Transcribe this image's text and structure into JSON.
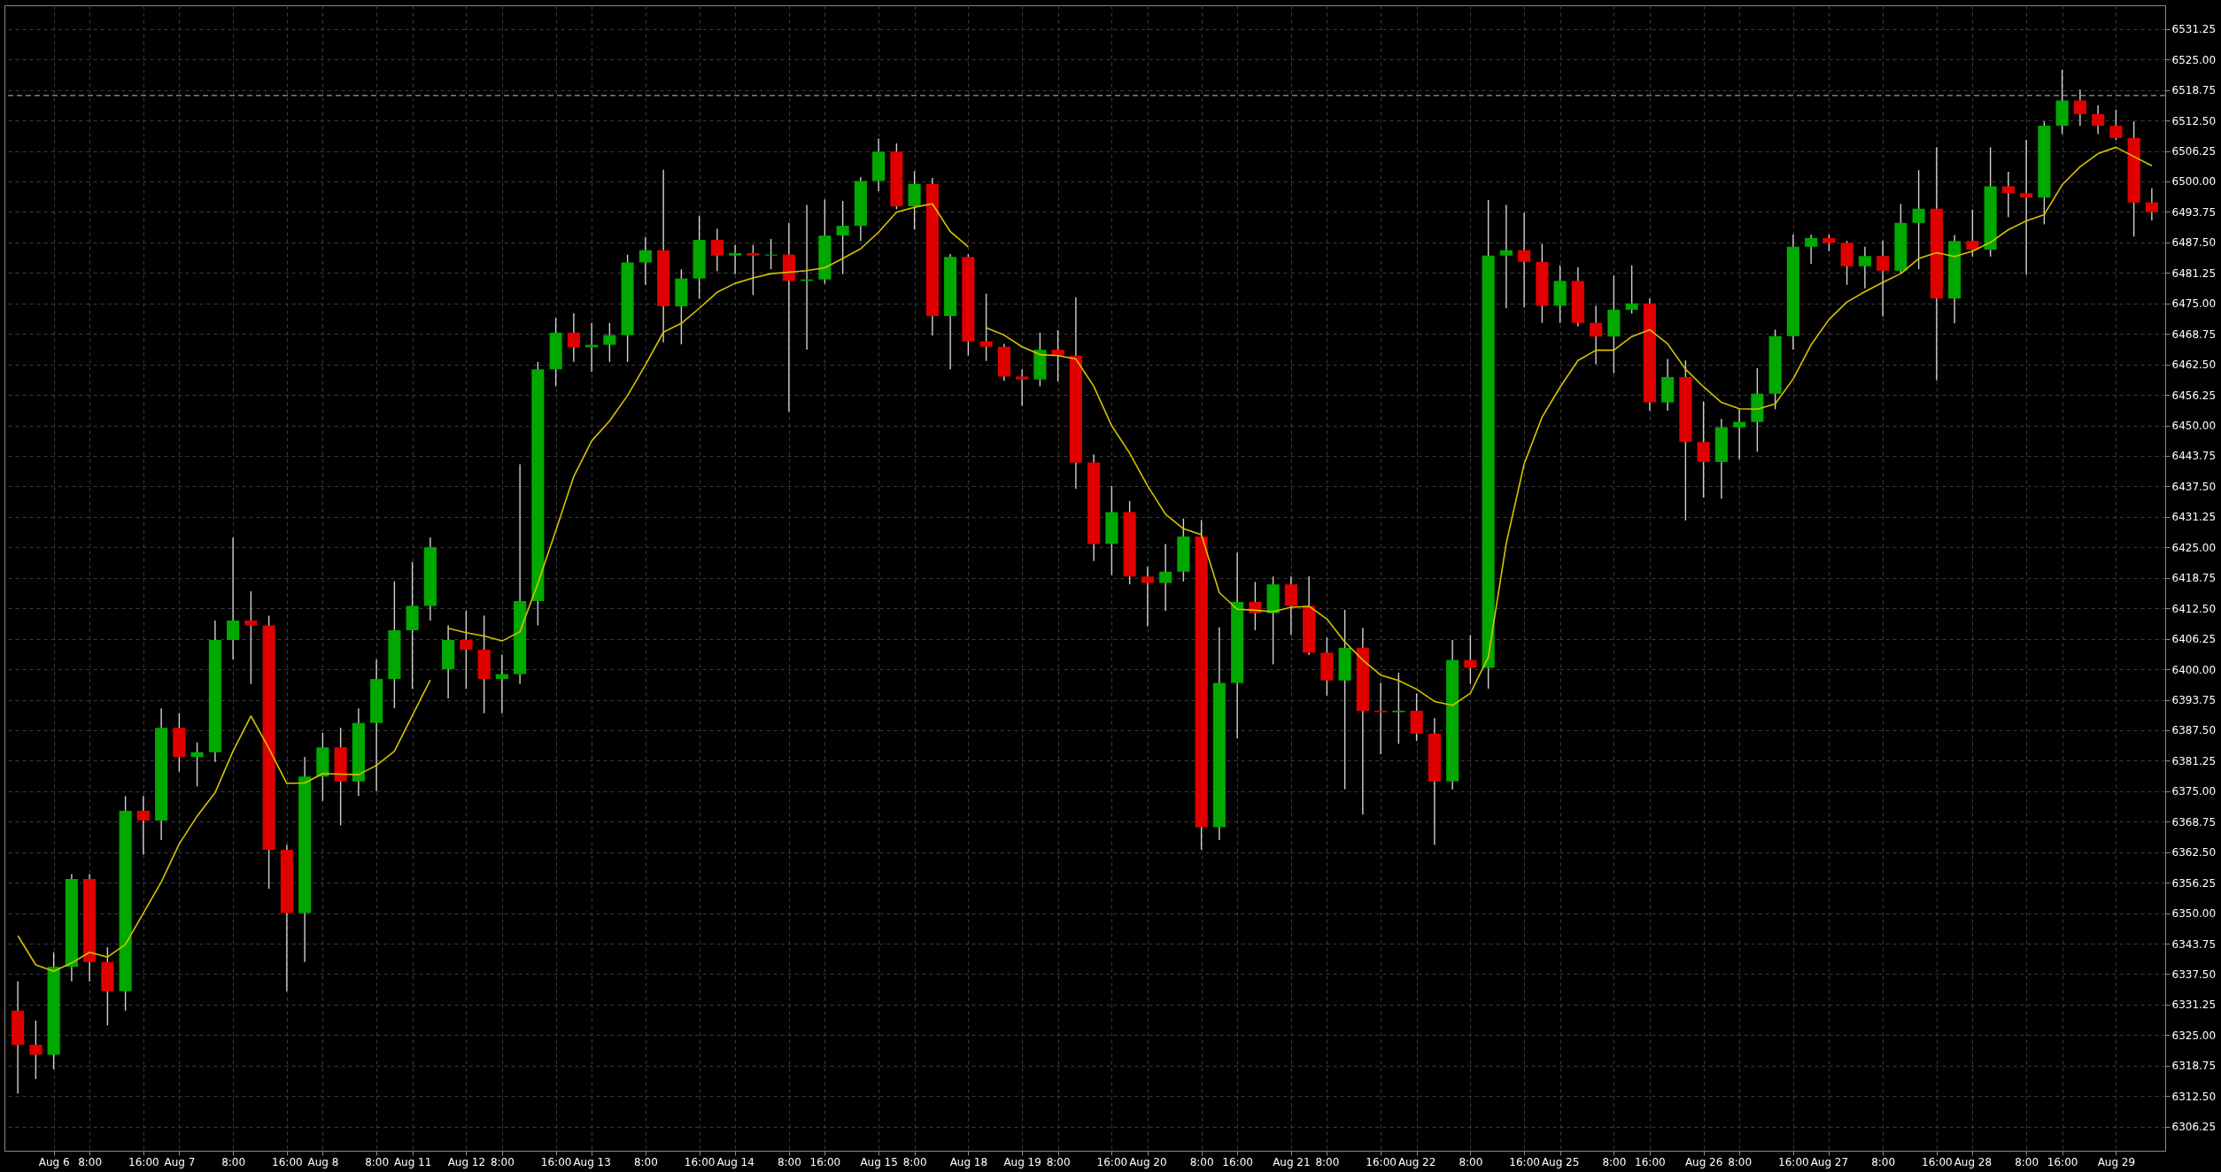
{
  "chart_data": {
    "type": "candlestick",
    "categories": [
      null,
      null,
      "Aug 6",
      null,
      "8:00",
      null,
      null,
      "16:00",
      null,
      "Aug 7",
      null,
      null,
      "8:00",
      null,
      null,
      "16:00",
      null,
      "Aug 8",
      null,
      null,
      "8:00",
      null,
      "Aug 11",
      null,
      null,
      "Aug 12",
      null,
      "8:00",
      null,
      null,
      "16:00",
      null,
      "Aug 13",
      null,
      null,
      "8:00",
      null,
      null,
      "16:00",
      null,
      "Aug 14",
      null,
      null,
      "8:00",
      null,
      "16:00",
      null,
      null,
      "Aug 15",
      null,
      "8:00",
      null,
      null,
      "Aug 18",
      null,
      null,
      "Aug 19",
      null,
      "8:00",
      null,
      null,
      "16:00",
      null,
      "Aug 20",
      null,
      null,
      "8:00",
      null,
      "16:00",
      null,
      null,
      "Aug 21",
      null,
      "8:00",
      null,
      null,
      "16:00",
      null,
      "Aug 22",
      null,
      null,
      "8:00",
      null,
      null,
      "16:00",
      null,
      "Aug 25",
      null,
      null,
      "8:00",
      null,
      "16:00",
      null,
      null,
      "Aug 26",
      null,
      "8:00",
      null,
      null,
      "16:00",
      null,
      "Aug 27",
      null,
      null,
      "8:00",
      null,
      null,
      "16:00",
      null,
      "Aug 28",
      null,
      null,
      "8:00",
      null,
      "16:00",
      null,
      null,
      "Aug 29",
      null,
      null
    ],
    "ohlc": [
      [
        6330,
        6336,
        6313,
        6323
      ],
      [
        6323,
        6328,
        6316,
        6321
      ],
      [
        6321,
        6342,
        6318,
        6339
      ],
      [
        6339,
        6358,
        6336,
        6357
      ],
      [
        6357,
        6358,
        6336,
        6340
      ],
      [
        6340,
        6343,
        6327,
        6334
      ],
      [
        6334,
        6374,
        6330,
        6371
      ],
      [
        6371,
        6374,
        6362,
        6369
      ],
      [
        6369,
        6392,
        6365,
        6388
      ],
      [
        6388,
        6391,
        6379,
        6382
      ],
      [
        6382,
        6385,
        6376,
        6383
      ],
      [
        6383,
        6410,
        6381,
        6406
      ],
      [
        6406,
        6427,
        6402,
        6410
      ],
      [
        6410,
        6416,
        6397,
        6409
      ],
      [
        6409,
        6411,
        6355,
        6363
      ],
      [
        6363,
        6364,
        6334,
        6350
      ],
      [
        6350,
        6382,
        6340,
        6378
      ],
      [
        6378,
        6387,
        6373,
        6384
      ],
      [
        6384,
        6388,
        6368,
        6377
      ],
      [
        6377,
        6392,
        6374,
        6389
      ],
      [
        6389,
        6402,
        6375,
        6398
      ],
      [
        6398,
        6418,
        6392,
        6408
      ],
      [
        6408,
        6422,
        6396,
        6413
      ],
      [
        6413,
        6427,
        6410,
        6425
      ],
      [
        6400,
        6409,
        6394,
        6406
      ],
      [
        6406,
        6412,
        6396,
        6404
      ],
      [
        6404,
        6411,
        6391,
        6398
      ],
      [
        6398,
        6403,
        6391,
        6399
      ],
      [
        6399,
        6442,
        6397,
        6414
      ],
      [
        6414,
        6463,
        6409,
        6461.5
      ],
      [
        6461.5,
        6472,
        6458,
        6469
      ],
      [
        6469,
        6473,
        6463,
        6466
      ],
      [
        6466,
        6471,
        6461,
        6466.5
      ],
      [
        6466.5,
        6471,
        6463,
        6468.5
      ],
      [
        6468.5,
        6485,
        6463,
        6483.4
      ],
      [
        6483.4,
        6488.6,
        6478.8,
        6485.9
      ],
      [
        6485.9,
        6502.4,
        6467,
        6474.4
      ],
      [
        6474.4,
        6482,
        6466.6,
        6480.1
      ],
      [
        6480.1,
        6493,
        6476,
        6488
      ],
      [
        6488,
        6490.3,
        6481.6,
        6484.8
      ],
      [
        6484.8,
        6487,
        6481,
        6485.3
      ],
      [
        6485.3,
        6487,
        6476.7,
        6484.8
      ],
      [
        6484.8,
        6488.2,
        6482,
        6485
      ],
      [
        6485,
        6491.5,
        6452.8,
        6479.6
      ],
      [
        6479.6,
        6495.2,
        6465.5,
        6479.9
      ],
      [
        6479.9,
        6496.3,
        6479,
        6488.9
      ],
      [
        6488.9,
        6496,
        6481,
        6490.9
      ],
      [
        6490.9,
        6500.9,
        6487.8,
        6500.1
      ],
      [
        6500.1,
        6508.8,
        6498,
        6506.1
      ],
      [
        6506.1,
        6507.8,
        6494.3,
        6494.9
      ],
      [
        6494.9,
        6502.1,
        6490.1,
        6499.5
      ],
      [
        6499.5,
        6500.7,
        6468.4,
        6472.4
      ],
      [
        6472.4,
        6485.1,
        6461.5,
        6484.5
      ],
      [
        6484.5,
        6485.1,
        6464.3,
        6467.2
      ],
      [
        6467.2,
        6477,
        6463.2,
        6466.1
      ],
      [
        6466.1,
        6466.7,
        6459.1,
        6460
      ],
      [
        6460,
        6461.5,
        6454,
        6459.4
      ],
      [
        6459.4,
        6469,
        6458,
        6465.5
      ],
      [
        6465.5,
        6469.5,
        6459,
        6464.3
      ],
      [
        6464.3,
        6476.2,
        6437,
        6442.4
      ],
      [
        6442.4,
        6444,
        6422.2,
        6425.7
      ],
      [
        6425.7,
        6437.6,
        6419.3,
        6432.2
      ],
      [
        6432.2,
        6434.5,
        6417.4,
        6419
      ],
      [
        6419,
        6421,
        6408.8,
        6417.7
      ],
      [
        6417.7,
        6425.7,
        6412,
        6420
      ],
      [
        6420,
        6430.9,
        6418,
        6427.2
      ],
      [
        6427.2,
        6430.6,
        6363,
        6367.6
      ],
      [
        6367.6,
        6408.6,
        6365,
        6397.2
      ],
      [
        6397.2,
        6423.9,
        6385.8,
        6413.8
      ],
      [
        6413.8,
        6417.9,
        6408,
        6411.5
      ],
      [
        6411.5,
        6419,
        6401,
        6417.4
      ],
      [
        6417.4,
        6419,
        6407,
        6413
      ],
      [
        6413,
        6419,
        6402.9,
        6403.4
      ],
      [
        6403.4,
        6406.5,
        6394.6,
        6397.7
      ],
      [
        6397.7,
        6412.2,
        6375.4,
        6404.4
      ],
      [
        6404.4,
        6408.5,
        6370.2,
        6391.5
      ],
      [
        6391.5,
        6397.2,
        6382.6,
        6391.2
      ],
      [
        6391.2,
        6399.3,
        6384.7,
        6391.5
      ],
      [
        6391.5,
        6395,
        6385.3,
        6386.8
      ],
      [
        6386.8,
        6390,
        6364,
        6377
      ],
      [
        6377,
        6406,
        6375.4,
        6401.9
      ],
      [
        6401.9,
        6407,
        6397,
        6400.3
      ],
      [
        6400.3,
        6496.2,
        6396,
        6484.8
      ],
      [
        6484.8,
        6495.2,
        6474,
        6485.9
      ],
      [
        6485.9,
        6493.6,
        6474.2,
        6483.5
      ],
      [
        6483.5,
        6487.2,
        6471,
        6474.5
      ],
      [
        6474.5,
        6482.8,
        6471,
        6479.6
      ],
      [
        6479.6,
        6482.4,
        6470.3,
        6471
      ],
      [
        6471,
        6474.5,
        6462.5,
        6468.2
      ],
      [
        6468.2,
        6480.7,
        6460.7,
        6473.7
      ],
      [
        6473.7,
        6482.8,
        6472.9,
        6475
      ],
      [
        6475,
        6476,
        6453,
        6454.7
      ],
      [
        6454.7,
        6463.6,
        6453,
        6459.9
      ],
      [
        6459.9,
        6463.3,
        6430.5,
        6446.6
      ],
      [
        6446.6,
        6454.9,
        6435.2,
        6442.5
      ],
      [
        6442.5,
        6451.3,
        6435,
        6449.6
      ],
      [
        6449.6,
        6453.5,
        6443,
        6450.7
      ],
      [
        6450.7,
        6461.7,
        6444.6,
        6456.5
      ],
      [
        6456.5,
        6469.6,
        6453.3,
        6468.3
      ],
      [
        6468.3,
        6489.1,
        6465.5,
        6486.6
      ],
      [
        6486.6,
        6489.1,
        6483.1,
        6488.4
      ],
      [
        6488.4,
        6489.1,
        6485.7,
        6487.4
      ],
      [
        6487.4,
        6487.8,
        6478.8,
        6482.6
      ],
      [
        6482.6,
        6486.6,
        6478.1,
        6484.7
      ],
      [
        6484.7,
        6487.9,
        6472.3,
        6481.7
      ],
      [
        6481.7,
        6495.4,
        6481.2,
        6491.5
      ],
      [
        6491.5,
        6502.3,
        6482,
        6494.4
      ],
      [
        6494.4,
        6507,
        6459.2,
        6476
      ],
      [
        6476,
        6489,
        6470.9,
        6487.8
      ],
      [
        6487.8,
        6494.2,
        6484.6,
        6486
      ],
      [
        6486,
        6507,
        6484.6,
        6499
      ],
      [
        6499,
        6502,
        6492.7,
        6497.6
      ],
      [
        6497.6,
        6508.5,
        6480.9,
        6496.7
      ],
      [
        6496.7,
        6512.3,
        6491.2,
        6511.4
      ],
      [
        6511.4,
        6522.9,
        6509.7,
        6516.6
      ],
      [
        6516.6,
        6518.8,
        6511.4,
        6513.8
      ],
      [
        6513.8,
        6515.6,
        6509.7,
        6511.4
      ],
      [
        6511.4,
        6514.7,
        6508.5,
        6508.9
      ],
      [
        6508.9,
        6512.3,
        6488.7,
        6495.7
      ],
      [
        6495.7,
        6498.6,
        6492,
        6493.7
      ]
    ],
    "colors": [
      "#e00000",
      "#e00000",
      "#00a800",
      "#00a800",
      "#e00000",
      "#e00000",
      "#00a800",
      "#e00000",
      "#00a800",
      "#e00000",
      "#00a800",
      "#00a800",
      "#00a800",
      "#e00000",
      "#e00000",
      "#e00000",
      "#00a800",
      "#00a800",
      "#e00000",
      "#00a800",
      "#00a800",
      "#00a800",
      "#00a800",
      "#00a800",
      "#00a800",
      "#e00000",
      "#e00000",
      "#00a800",
      "#00a800",
      "#00a800",
      "#00a800",
      "#e00000",
      "#00a800",
      "#00a800",
      "#00a800",
      "#00a800",
      "#e00000",
      "#00a800",
      "#00a800",
      "#e00000",
      "#00a800",
      "#e00000",
      "#00a800",
      "#e00000",
      "#00a800",
      "#00a800",
      "#00a800",
      "#00a800",
      "#00a800",
      "#e00000",
      "#00a800",
      "#e00000",
      "#00a800",
      "#e00000",
      "#e00000",
      "#e00000",
      "#e00000",
      "#00a800",
      "#e00000",
      "#e00000",
      "#e00000",
      "#00a800",
      "#e00000",
      "#e00000",
      "#00a800",
      "#00a800",
      "#e00000",
      "#00a800",
      "#00a800",
      "#e00000",
      "#00a800",
      "#e00000",
      "#e00000",
      "#e00000",
      "#00a800",
      "#e00000",
      "#e00000",
      "#00a800",
      "#e00000",
      "#e00000",
      "#00a800",
      "#e00000",
      "#00a800",
      "#00a800",
      "#e00000",
      "#e00000",
      "#00a800",
      "#e00000",
      "#e00000",
      "#00a800",
      "#00a800",
      "#e00000",
      "#00a800",
      "#e00000",
      "#e00000",
      "#00a800",
      "#00a800",
      "#00a800",
      "#00a800",
      "#00a800",
      "#00a800",
      "#e00000",
      "#e00000",
      "#00a800",
      "#e00000",
      "#00a800",
      "#00a800",
      "#e00000",
      "#00a800",
      "#e00000",
      "#00a800",
      "#e00000",
      "#e00000",
      "#00a800",
      "#00a800",
      "#e00000",
      "#e00000",
      "#e00000",
      "#e00000",
      "#e00000"
    ],
    "series": [
      {
        "type": "line",
        "color": "#d6c300",
        "values": [
          6345.4,
          6339.4,
          6338.1,
          6339.8,
          6342,
          6341,
          6343.6,
          6350,
          6356.4,
          6364.2,
          6369.9,
          6374.7,
          6383.2,
          6390.4,
          6383.8,
          6376.6,
          6376.7,
          6378.6,
          6378.5,
          6378.4,
          6380.3,
          6383.2,
          6390.5,
          6397.8,
          null,
          null,
          null,
          null,
          null,
          null,
          null,
          null,
          null,
          null,
          null,
          null,
          null,
          null,
          null,
          null,
          null,
          null,
          null,
          null,
          null,
          null,
          null,
          null,
          null,
          null,
          null,
          null,
          null,
          null,
          null,
          null,
          null,
          null,
          null,
          null,
          null,
          null,
          null,
          null,
          null,
          null,
          null,
          null,
          null,
          null,
          null,
          null,
          null,
          null,
          null,
          null,
          null,
          null,
          null,
          null,
          null,
          null,
          null,
          null,
          null,
          null,
          null,
          null,
          null,
          null,
          null,
          null,
          null,
          null,
          null,
          null,
          null,
          null,
          null,
          null,
          null,
          null,
          null,
          null,
          null,
          null,
          null,
          null,
          null,
          null,
          null,
          null,
          null,
          null,
          null,
          null,
          null,
          null,
          null,
          null
        ]
      },
      {
        "type": "line",
        "color": "#d6c300",
        "values": [
          null,
          null,
          null,
          null,
          null,
          null,
          null,
          null,
          null,
          null,
          null,
          null,
          null,
          null,
          null,
          null,
          null,
          null,
          null,
          null,
          null,
          null,
          null,
          null,
          6408.4,
          6407.5,
          6406.8,
          6405.8,
          6407.7,
          6417.6,
          6428.4,
          6439.5,
          6446.8,
          6450.9,
          6456.1,
          6462.4,
          6469.1,
          6470.9,
          6474,
          6477.3,
          6479.1,
          6480.2,
          6481.1,
          6481.4,
          6481.7,
          6482.3,
          6484.2,
          6486.2,
          6489.6,
          6493.7,
          6494.7,
          6495.4,
          6489.7,
          6486.6,
          null,
          null,
          null,
          null,
          null,
          null,
          null,
          null,
          null,
          null,
          null,
          null,
          null,
          null,
          null,
          null,
          null,
          null,
          null,
          null,
          null,
          null,
          null,
          null,
          null,
          null,
          null,
          null,
          null,
          null,
          null,
          null,
          null,
          null,
          null,
          null,
          null,
          null,
          null,
          null,
          null,
          null,
          null,
          null,
          null,
          null,
          null,
          null,
          null,
          null,
          null,
          null,
          null,
          null,
          null,
          null,
          null,
          null,
          null,
          null,
          null,
          null,
          null,
          null,
          null,
          null
        ]
      },
      {
        "type": "line",
        "color": "#d6c300",
        "values": [
          null,
          null,
          null,
          null,
          null,
          null,
          null,
          null,
          null,
          null,
          null,
          null,
          null,
          null,
          null,
          null,
          null,
          null,
          null,
          null,
          null,
          null,
          null,
          null,
          null,
          null,
          null,
          null,
          null,
          null,
          null,
          null,
          null,
          null,
          null,
          null,
          null,
          null,
          null,
          null,
          null,
          null,
          null,
          null,
          null,
          null,
          null,
          null,
          null,
          null,
          null,
          null,
          null,
          null,
          6470,
          6468.5,
          6466.1,
          6464.5,
          6464.3,
          6463.6,
          6458,
          6449.9,
          6444.3,
          6437.6,
          6431.8,
          6428.8,
          6427.6,
          6415.7,
          6412.3,
          6412.1,
          6411.8,
          6412.7,
          6412.9,
          6410.3,
          6405.6,
          6401.9,
          6398.8,
          6397.7,
          6395.9,
          6393.4,
          6392.6,
          6395.1,
          6402.5,
          6425.8,
          6442.1,
          6451.7,
          6457.8,
          6463.3,
          6465.4,
          6465.4,
          6468.2,
          6469.6,
          6466.7,
          6461.5,
          6457.9,
          6454.7,
          6453.4,
          6453.3,
          6454.4,
          6459.5,
          6466.5,
          6471.7,
          6475.3,
          6477.4,
          6479.3,
          6481.1,
          6484.2,
          6485.4,
          6484.6,
          6485.7,
          6487.5,
          6490.1,
          6491.9,
          6493.2,
          6499.3,
          6503,
          6505.7,
          6507,
          6505.1,
          6503.2
        ]
      }
    ],
    "ref_lines": [
      {
        "axis": "y",
        "value": 6517.6,
        "color": "#9a9a9a",
        "line_style": "dashed"
      }
    ],
    "ylim": [
      6301.3,
      6536.1
    ],
    "yticks": [
      {
        "value": 6306.25,
        "label": "6306.25"
      },
      {
        "value": 6312.5,
        "label": "6312.50"
      },
      {
        "value": 6318.75,
        "label": "6318.75"
      },
      {
        "value": 6325,
        "label": "6325.00"
      },
      {
        "value": 6331.25,
        "label": "6331.25"
      },
      {
        "value": 6337.5,
        "label": "6337.50"
      },
      {
        "value": 6343.75,
        "label": "6343.75"
      },
      {
        "value": 6350,
        "label": "6350.00"
      },
      {
        "value": 6356.25,
        "label": "6356.25"
      },
      {
        "value": 6362.5,
        "label": "6362.50"
      },
      {
        "value": 6368.75,
        "label": "6368.75"
      },
      {
        "value": 6375,
        "label": "6375.00"
      },
      {
        "value": 6381.25,
        "label": "6381.25"
      },
      {
        "value": 6387.5,
        "label": "6387.50"
      },
      {
        "value": 6393.75,
        "label": "6393.75"
      },
      {
        "value": 6400,
        "label": "6400.00"
      },
      {
        "value": 6406.25,
        "label": "6406.25"
      },
      {
        "value": 6412.5,
        "label": "6412.50"
      },
      {
        "value": 6418.75,
        "label": "6418.75"
      },
      {
        "value": 6425,
        "label": "6425.00"
      },
      {
        "value": 6431.25,
        "label": "6431.25"
      },
      {
        "value": 6437.5,
        "label": "6437.50"
      },
      {
        "value": 6443.75,
        "label": "6443.75"
      },
      {
        "value": 6450,
        "label": "6450.00"
      },
      {
        "value": 6456.25,
        "label": "6456.25"
      },
      {
        "value": 6462.5,
        "label": "6462.50"
      },
      {
        "value": 6468.75,
        "label": "6468.75"
      },
      {
        "value": 6475,
        "label": "6475.00"
      },
      {
        "value": 6481.25,
        "label": "6481.25"
      },
      {
        "value": 6487.5,
        "label": "6487.50"
      },
      {
        "value": 6493.75,
        "label": "6493.75"
      },
      {
        "value": 6500,
        "label": "6500.00"
      },
      {
        "value": 6506.25,
        "label": "6506.25"
      },
      {
        "value": 6512.5,
        "label": "6512.50"
      },
      {
        "value": 6518.75,
        "label": "6518.75"
      },
      {
        "value": 6525,
        "label": "6525.00"
      },
      {
        "value": 6531.25,
        "label": "6531.25"
      }
    ],
    "grid": true
  }
}
